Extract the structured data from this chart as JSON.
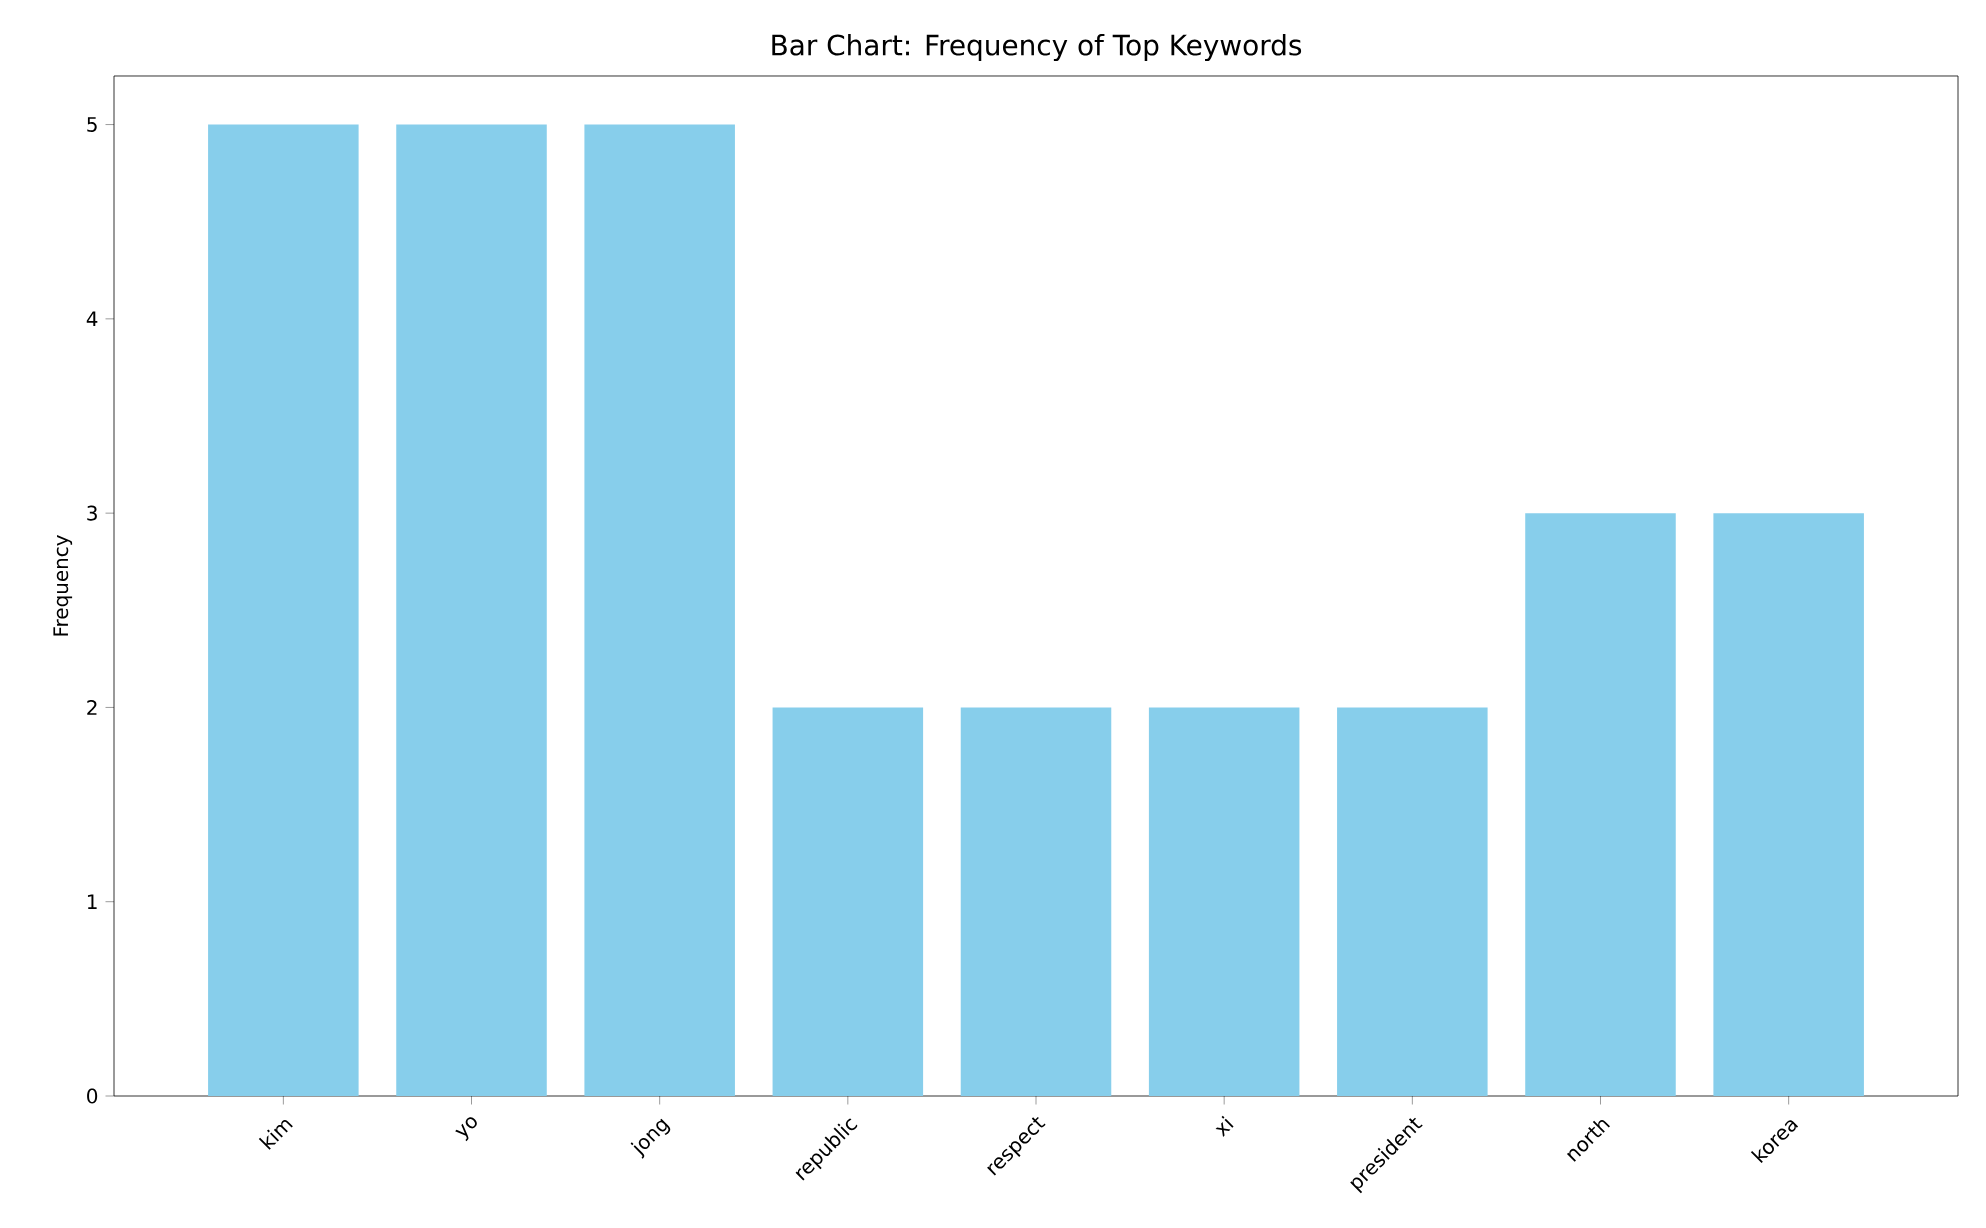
{
  "chart_data": {
    "type": "bar",
    "title": "Bar Chart: Frequency of Top Keywords",
    "ylabel": "Frequency",
    "categories": [
      "kim",
      "yo",
      "jong",
      "republic",
      "respect",
      "xi",
      "president",
      "north",
      "korea"
    ],
    "values": [
      5,
      5,
      5,
      2,
      2,
      2,
      2,
      3,
      3
    ],
    "color": "#87ceeb",
    "ylim": [
      0,
      5.25
    ],
    "yticks": [
      0,
      1,
      2,
      3,
      4,
      5
    ],
    "grid": false
  }
}
